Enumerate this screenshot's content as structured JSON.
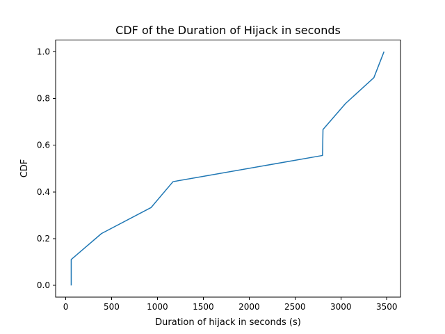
{
  "chart_data": {
    "type": "line",
    "title": "CDF of the Duration of Hijack in seconds",
    "xlabel": "Duration of hijack in seconds (s)",
    "ylabel": "CDF",
    "xlim": [
      -110,
      3650
    ],
    "ylim": [
      -0.05,
      1.05
    ],
    "xticks": [
      0,
      500,
      1000,
      1500,
      2000,
      2500,
      3000,
      3500
    ],
    "xtick_labels": [
      "0",
      "500",
      "1000",
      "1500",
      "2000",
      "2500",
      "3000",
      "3500"
    ],
    "yticks": [
      0.0,
      0.2,
      0.4,
      0.6,
      0.8,
      1.0
    ],
    "ytick_labels": [
      "0.0",
      "0.2",
      "0.4",
      "0.6",
      "0.8",
      "1.0"
    ],
    "grid": false,
    "series": [
      {
        "color": "#1f77b4",
        "x": [
          60,
          60,
          390,
          930,
          1170,
          2800,
          2805,
          3050,
          3360,
          3470
        ],
        "y": [
          0.0,
          0.111,
          0.222,
          0.333,
          0.444,
          0.556,
          0.667,
          0.778,
          0.889,
          1.0
        ]
      }
    ]
  }
}
